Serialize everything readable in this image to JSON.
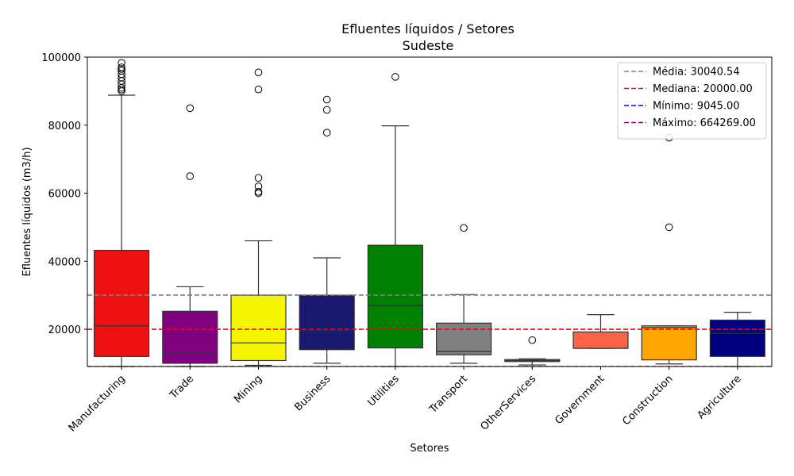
{
  "chart_data": {
    "type": "box",
    "title": "Efluentes líquidos / Setores",
    "subtitle": "Sudeste",
    "xlabel": "Setores",
    "ylabel": "Efluentes líquidos (m3/h)",
    "ylim": [
      9045,
      100000
    ],
    "yticks": [
      20000,
      40000,
      60000,
      80000,
      100000
    ],
    "ytick_labels": [
      "20000",
      "40000",
      "60000",
      "80000",
      "100000"
    ],
    "legend_position": "top-right",
    "categories": [
      "Manufacturing",
      "Trade",
      "Mining",
      "Business",
      "Utilities",
      "Transport",
      "OtherServices",
      "Government",
      "Construction",
      "Agriculture"
    ],
    "boxes": [
      {
        "category": "Manufacturing",
        "color": "#ee1111",
        "whislo": 9045,
        "q1": 12000,
        "med": 21000,
        "q3": 43200,
        "whishi": 88800,
        "fliers": [
          90000,
          90500,
          91000,
          92000,
          93000,
          94000,
          95000,
          96000,
          96500,
          97000,
          98300
        ]
      },
      {
        "category": "Trade",
        "color": "#800080",
        "whislo": 9045,
        "q1": 10000,
        "med": 13200,
        "q3": 25300,
        "whishi": 32500,
        "fliers": [
          65000,
          85000
        ]
      },
      {
        "category": "Mining",
        "color": "#f5f500",
        "whislo": 9400,
        "q1": 10800,
        "med": 16000,
        "q3": 30000,
        "whishi": 46000,
        "fliers": [
          60000,
          60400,
          62000,
          64500,
          90500,
          95500
        ]
      },
      {
        "category": "Business",
        "color": "#191970",
        "whislo": 10000,
        "q1": 14000,
        "med": 19500,
        "q3": 30000,
        "whishi": 41000,
        "fliers": [
          77800,
          84500,
          87500
        ]
      },
      {
        "category": "Utilities",
        "color": "#008000",
        "whislo": 9045,
        "q1": 14500,
        "med": 27000,
        "q3": 44700,
        "whishi": 79800,
        "fliers": [
          94200
        ]
      },
      {
        "category": "Transport",
        "color": "#808080",
        "whislo": 10000,
        "q1": 12500,
        "med": 13500,
        "q3": 21800,
        "whishi": 30200,
        "fliers": [
          49800
        ]
      },
      {
        "category": "OtherServices",
        "color": "#9acd32",
        "whislo": 9500,
        "q1": 10500,
        "med": 10800,
        "q3": 11100,
        "whishi": 11300,
        "fliers": [
          16800
        ]
      },
      {
        "category": "Government",
        "color": "#ff6347",
        "whislo": 14400,
        "q1": 14400,
        "med": 14400,
        "q3": 19200,
        "whishi": 24300,
        "fliers": []
      },
      {
        "category": "Construction",
        "color": "#ffa500",
        "whislo": 9800,
        "q1": 11000,
        "med": 20500,
        "q3": 21000,
        "whishi": 21000,
        "fliers": [
          50000,
          76300
        ]
      },
      {
        "category": "Agriculture",
        "color": "#000080",
        "whislo": 9045,
        "q1": 12000,
        "med": 18800,
        "q3": 22700,
        "whishi": 25000,
        "fliers": []
      }
    ],
    "hlines": [
      {
        "label": "Média: 30040.54",
        "value": 30040.54,
        "color": "#808080"
      },
      {
        "label": "Mediana: 20000.00",
        "value": 20000,
        "color": "#ff0000"
      },
      {
        "label": "Mínimo: 9045.00",
        "value": 9045,
        "color": "#0000ff"
      },
      {
        "label": "Máximo: 664269.00",
        "value": 664269,
        "color": "#800080"
      }
    ]
  }
}
